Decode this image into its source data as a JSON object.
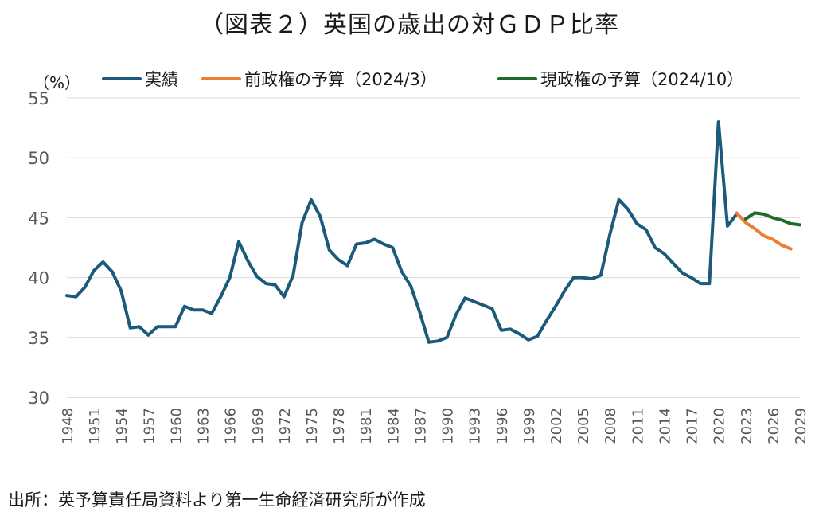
{
  "title": "（図表２）英国の歳出の対ＧＤＰ比率",
  "source": "出所：英予算責任局資料より第一生命経済研究所が作成",
  "chart_data": {
    "type": "line",
    "ylabel": "（%）",
    "ylim": [
      30,
      55
    ],
    "y_ticks": [
      30,
      35,
      40,
      45,
      50,
      55
    ],
    "xlim": [
      1948,
      2029
    ],
    "x_ticks": [
      1948,
      1951,
      1954,
      1957,
      1960,
      1963,
      1966,
      1969,
      1972,
      1975,
      1978,
      1981,
      1984,
      1987,
      1990,
      1993,
      1996,
      1999,
      2002,
      2005,
      2008,
      2011,
      2014,
      2017,
      2020,
      2023,
      2026,
      2029
    ],
    "grid": true,
    "legend_position": "top",
    "series": [
      {
        "name": "実績",
        "color": "#1b5a7a",
        "x": [
          1948,
          1949,
          1950,
          1951,
          1952,
          1953,
          1954,
          1955,
          1956,
          1957,
          1958,
          1959,
          1960,
          1961,
          1962,
          1963,
          1964,
          1965,
          1966,
          1967,
          1968,
          1969,
          1970,
          1971,
          1972,
          1973,
          1974,
          1975,
          1976,
          1977,
          1978,
          1979,
          1980,
          1981,
          1982,
          1983,
          1984,
          1985,
          1986,
          1987,
          1988,
          1989,
          1990,
          1991,
          1992,
          1993,
          1994,
          1995,
          1996,
          1997,
          1998,
          1999,
          2000,
          2001,
          2002,
          2003,
          2004,
          2005,
          2006,
          2007,
          2008,
          2009,
          2010,
          2011,
          2012,
          2013,
          2014,
          2015,
          2016,
          2017,
          2018,
          2019,
          2020,
          2021,
          2022
        ],
        "y": [
          38.5,
          38.4,
          39.2,
          40.6,
          41.3,
          40.5,
          38.9,
          35.8,
          35.9,
          35.2,
          35.9,
          35.9,
          35.9,
          37.6,
          37.3,
          37.3,
          37.0,
          38.4,
          40.0,
          43.0,
          41.4,
          40.1,
          39.5,
          39.4,
          38.4,
          40.2,
          44.6,
          46.5,
          45.1,
          42.3,
          41.5,
          41.0,
          42.8,
          42.9,
          43.2,
          42.8,
          42.5,
          40.5,
          39.3,
          37.1,
          34.6,
          34.7,
          35.0,
          36.9,
          38.3,
          38.0,
          37.7,
          37.4,
          35.6,
          35.7,
          35.3,
          34.8,
          35.1,
          36.4,
          37.6,
          38.9,
          40.0,
          40.0,
          39.9,
          40.2,
          43.6,
          46.5,
          45.7,
          44.5,
          44.0,
          42.5,
          42.0,
          41.2,
          40.4,
          40.0,
          39.5,
          39.5,
          53.0,
          44.3,
          45.3
        ]
      },
      {
        "name": "前政権の予算（2024/3）",
        "color": "#ed7d31",
        "x": [
          2022,
          2023,
          2024,
          2025,
          2026,
          2027,
          2028
        ],
        "y": [
          45.4,
          44.6,
          44.1,
          43.5,
          43.2,
          42.7,
          42.4
        ]
      },
      {
        "name": "現政権の予算（2024/10）",
        "color": "#1e6b2a",
        "x": [
          2023,
          2024,
          2025,
          2026,
          2027,
          2028,
          2029
        ],
        "y": [
          44.9,
          45.4,
          45.3,
          45.0,
          44.8,
          44.5,
          44.4
        ]
      }
    ]
  }
}
